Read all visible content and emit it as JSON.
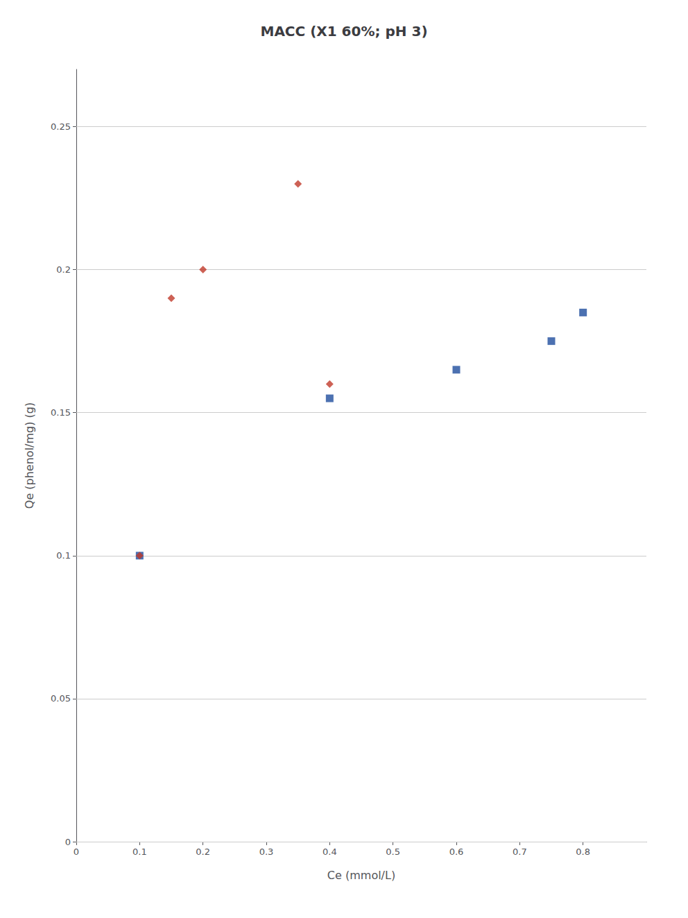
{
  "chart_data": {
    "type": "scatter",
    "title": "MACC (X1 60%; pH 3)",
    "x_label": "Ce (mmol/L)",
    "y_label": "Qe (phenol/mg) (g)",
    "series": [
      {
        "color": "#1f4e9e",
        "marker": "square",
        "x": [
          0.1,
          0.4,
          0.6,
          0.75,
          0.8
        ],
        "values": [
          0.1,
          0.155,
          0.165,
          0.175,
          0.185
        ]
      },
      {
        "color": "#c0392b",
        "marker": "diamond",
        "x": [
          0.1,
          0.15,
          0.2,
          0.35,
          0.4
        ],
        "values": [
          0.1,
          0.19,
          0.2,
          0.23,
          0.16
        ]
      }
    ],
    "xlim": [
      0,
      0.9
    ],
    "xticks": [
      0,
      0.1,
      0.2,
      0.3,
      0.4,
      0.5,
      0.6,
      0.7,
      0.8
    ],
    "ylim": [
      0,
      0.27
    ],
    "yticks": [
      0,
      0.05,
      0.1,
      0.15,
      0.2,
      0.25
    ],
    "grid": "y"
  }
}
